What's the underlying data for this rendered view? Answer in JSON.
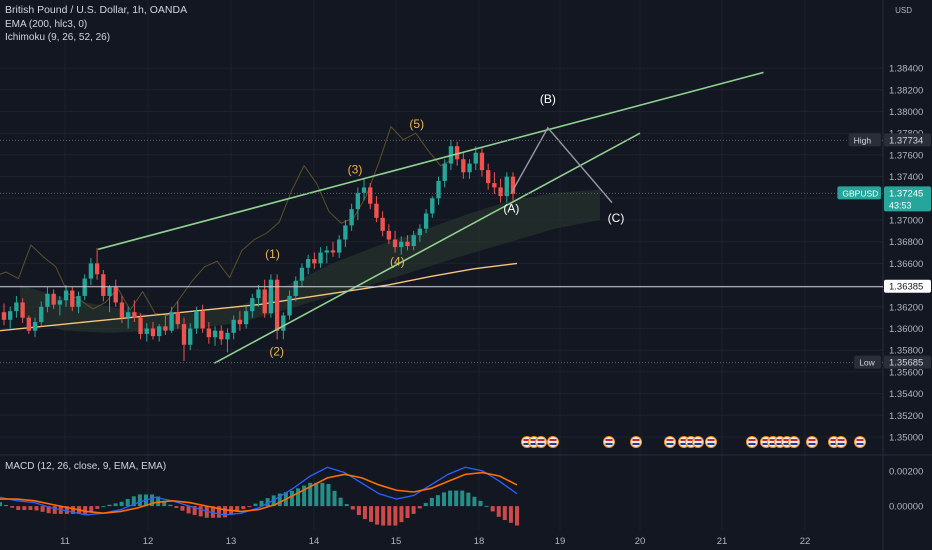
{
  "legend": {
    "title": "British Pound / U.S. Dollar, 1h, OANDA",
    "ema": "EMA (200, hlc3, 0)",
    "ichimoku": "Ichimoku (9, 26, 52, 26)",
    "macd": "MACD (12, 26, close, 9, EMA, EMA)"
  },
  "colors": {
    "background": "#131722",
    "up": "#26a69a",
    "down": "#ef5350",
    "ema": "#f7c480",
    "wedge": "#8fd18f",
    "projection": "#9598a1",
    "wave_label": "#f0b34a",
    "abc_label": "#ffffff",
    "macd_line": "#2962ff",
    "signal_line": "#ff6d00",
    "cloud": "#2a3a30"
  },
  "chart_data": [
    {
      "type": "candlestick",
      "title": "British Pound / U.S. Dollar, 1h, OANDA",
      "symbol": "GBPUSD",
      "x_ticks": [
        "11",
        "12",
        "13",
        "14",
        "15",
        "18",
        "19",
        "20",
        "21",
        "22"
      ],
      "y_ticks": [
        "1.38400",
        "1.38200",
        "1.38000",
        "1.37800",
        "1.37600",
        "1.37400",
        "1.37200",
        "1.37000",
        "1.36800",
        "1.36600",
        "1.36400",
        "1.36200",
        "1.36000",
        "1.35800",
        "1.35600",
        "1.35400",
        "1.35200",
        "1.35000"
      ],
      "y_unit": "USD",
      "ylim": [
        1.3496,
        1.3855
      ],
      "price_labels": [
        {
          "label": "High",
          "value": "1.37734"
        },
        {
          "label": "GBPUSD",
          "value": "1.37245",
          "sub": "43:53"
        },
        {
          "label": "",
          "value": "1.36385"
        },
        {
          "label": "Low",
          "value": "1.35685"
        }
      ],
      "levels": {
        "high": 1.37734,
        "current": 1.37245,
        "crosshair": 1.36385,
        "low": 1.35685
      },
      "wave_labels": [
        {
          "text": "(1)",
          "x_day": 13.5,
          "y": 1.3665
        },
        {
          "text": "(2)",
          "x_day": 13.55,
          "y": 1.3575
        },
        {
          "text": "(3)",
          "x_day": 14.5,
          "y": 1.3743
        },
        {
          "text": "(4)",
          "x_day": 15.05,
          "y": 1.3658
        },
        {
          "text": "(5)",
          "x_day": 15.75,
          "y": 1.3785
        },
        {
          "text": "(A)",
          "x_day": 18.4,
          "y": 1.3707
        },
        {
          "text": "(B)",
          "x_day": 18.85,
          "y": 1.3808
        },
        {
          "text": "(C)",
          "x_day": 19.7,
          "y": 1.3698
        }
      ],
      "trendlines": {
        "upper": [
          [
            11.4,
            1.3673
          ],
          [
            21.5,
            1.3836
          ]
        ],
        "lower": [
          [
            12.8,
            1.3568
          ],
          [
            20.0,
            1.378
          ]
        ],
        "projection": [
          [
            18.4,
            1.3725
          ],
          [
            18.85,
            1.3785
          ],
          [
            19.65,
            1.3716
          ]
        ]
      },
      "candles_ohlc": [
        [
          1.3615,
          1.3623,
          1.3603,
          1.3608
        ],
        [
          1.3608,
          1.362,
          1.36,
          1.3616
        ],
        [
          1.3616,
          1.363,
          1.361,
          1.3624
        ],
        [
          1.3624,
          1.3628,
          1.3605,
          1.361
        ],
        [
          1.361,
          1.3612,
          1.3595,
          1.3598
        ],
        [
          1.3598,
          1.361,
          1.3592,
          1.3606
        ],
        [
          1.3606,
          1.3625,
          1.3602,
          1.362
        ],
        [
          1.362,
          1.3638,
          1.3615,
          1.3632
        ],
        [
          1.3632,
          1.3636,
          1.3618,
          1.3622
        ],
        [
          1.3622,
          1.363,
          1.3612,
          1.3626
        ],
        [
          1.3626,
          1.364,
          1.362,
          1.3635
        ],
        [
          1.3635,
          1.3638,
          1.3616,
          1.362
        ],
        [
          1.362,
          1.3634,
          1.3614,
          1.363
        ],
        [
          1.363,
          1.365,
          1.3626,
          1.3646
        ],
        [
          1.3646,
          1.3665,
          1.364,
          1.366
        ],
        [
          1.366,
          1.3674,
          1.3645,
          1.365
        ],
        [
          1.365,
          1.3654,
          1.3625,
          1.363
        ],
        [
          1.363,
          1.364,
          1.3615,
          1.3638
        ],
        [
          1.3638,
          1.3645,
          1.362,
          1.3624
        ],
        [
          1.3624,
          1.363,
          1.3605,
          1.361
        ],
        [
          1.361,
          1.362,
          1.36,
          1.3615
        ],
        [
          1.3615,
          1.3626,
          1.3606,
          1.361
        ],
        [
          1.361,
          1.3614,
          1.359,
          1.3595
        ],
        [
          1.3595,
          1.3605,
          1.3588,
          1.36
        ],
        [
          1.36,
          1.3606,
          1.359,
          1.3593
        ],
        [
          1.3593,
          1.3604,
          1.3588,
          1.3602
        ],
        [
          1.3602,
          1.3612,
          1.3594,
          1.3598
        ],
        [
          1.3598,
          1.362,
          1.3596,
          1.3615
        ],
        [
          1.3615,
          1.3625,
          1.36,
          1.3604
        ],
        [
          1.3604,
          1.361,
          1.357,
          1.3585
        ],
        [
          1.3585,
          1.3605,
          1.358,
          1.36
        ],
        [
          1.36,
          1.362,
          1.3595,
          1.3616
        ],
        [
          1.3616,
          1.3622,
          1.3596,
          1.36
        ],
        [
          1.36,
          1.3606,
          1.3586,
          1.3592
        ],
        [
          1.3592,
          1.3602,
          1.3584,
          1.3598
        ],
        [
          1.3598,
          1.3603,
          1.3585,
          1.359
        ],
        [
          1.359,
          1.36,
          1.3578,
          1.3596
        ],
        [
          1.3596,
          1.3612,
          1.359,
          1.3608
        ],
        [
          1.3608,
          1.3616,
          1.3598,
          1.3604
        ],
        [
          1.3604,
          1.362,
          1.36,
          1.3616
        ],
        [
          1.3616,
          1.3632,
          1.361,
          1.3628
        ],
        [
          1.3628,
          1.364,
          1.362,
          1.3636
        ],
        [
          1.3636,
          1.3645,
          1.361,
          1.3614
        ],
        [
          1.3614,
          1.365,
          1.361,
          1.3645
        ],
        [
          1.3645,
          1.365,
          1.359,
          1.3598
        ],
        [
          1.3598,
          1.3615,
          1.359,
          1.3612
        ],
        [
          1.3612,
          1.3635,
          1.3608,
          1.363
        ],
        [
          1.363,
          1.3648,
          1.3625,
          1.3644
        ],
        [
          1.3644,
          1.366,
          1.3638,
          1.3656
        ],
        [
          1.3656,
          1.3668,
          1.365,
          1.3664
        ],
        [
          1.3664,
          1.367,
          1.3655,
          1.366
        ],
        [
          1.366,
          1.3675,
          1.3656,
          1.367
        ],
        [
          1.367,
          1.3676,
          1.366,
          1.3672
        ],
        [
          1.3672,
          1.368,
          1.3666,
          1.367
        ],
        [
          1.367,
          1.3686,
          1.3665,
          1.3682
        ],
        [
          1.3682,
          1.37,
          1.3675,
          1.3695
        ],
        [
          1.3695,
          1.3715,
          1.369,
          1.371
        ],
        [
          1.371,
          1.373,
          1.37,
          1.3725
        ],
        [
          1.3725,
          1.3738,
          1.3718,
          1.373
        ],
        [
          1.373,
          1.3734,
          1.371,
          1.3715
        ],
        [
          1.3715,
          1.3722,
          1.3698,
          1.3702
        ],
        [
          1.3702,
          1.3708,
          1.3685,
          1.369
        ],
        [
          1.369,
          1.3696,
          1.3678,
          1.3682
        ],
        [
          1.3682,
          1.369,
          1.367,
          1.3675
        ],
        [
          1.3675,
          1.3685,
          1.3668,
          1.368
        ],
        [
          1.368,
          1.3686,
          1.3672,
          1.3676
        ],
        [
          1.3676,
          1.369,
          1.3672,
          1.3686
        ],
        [
          1.3686,
          1.3696,
          1.368,
          1.3692
        ],
        [
          1.3692,
          1.371,
          1.3688,
          1.3706
        ],
        [
          1.3706,
          1.3722,
          1.3702,
          1.372
        ],
        [
          1.372,
          1.374,
          1.3714,
          1.3736
        ],
        [
          1.3736,
          1.3756,
          1.373,
          1.3752
        ],
        [
          1.3752,
          1.3774,
          1.3746,
          1.3768
        ],
        [
          1.3768,
          1.3772,
          1.375,
          1.3756
        ],
        [
          1.3756,
          1.3762,
          1.3738,
          1.3744
        ],
        [
          1.3744,
          1.3756,
          1.3738,
          1.3752
        ],
        [
          1.3752,
          1.3768,
          1.3746,
          1.3762
        ],
        [
          1.3762,
          1.3766,
          1.374,
          1.3746
        ],
        [
          1.3746,
          1.3752,
          1.3728,
          1.3734
        ],
        [
          1.3734,
          1.3744,
          1.3724,
          1.373
        ],
        [
          1.373,
          1.3738,
          1.3716,
          1.3722
        ],
        [
          1.3722,
          1.3744,
          1.3716,
          1.374
        ],
        [
          1.374,
          1.3744,
          1.3718,
          1.3724
        ]
      ],
      "ema_values": [
        1.3598,
        1.3602,
        1.3606,
        1.361,
        1.3614,
        1.3618,
        1.3622,
        1.3628,
        1.3634,
        1.364,
        1.3648,
        1.3655,
        1.366
      ],
      "cloud_upper": [
        1.364,
        1.3628,
        1.362,
        1.3612,
        1.3615,
        1.3622,
        1.364,
        1.366,
        1.3676,
        1.369,
        1.3705,
        1.3718,
        1.3725,
        1.3728
      ],
      "cloud_lower": [
        1.361,
        1.3598,
        1.3596,
        1.3598,
        1.36,
        1.3606,
        1.3618,
        1.363,
        1.3642,
        1.3655,
        1.3668,
        1.368,
        1.3692,
        1.37
      ],
      "event_markers_x": [
        527,
        534,
        541,
        553,
        609,
        636,
        670,
        684,
        691,
        698,
        711,
        752,
        766,
        773,
        780,
        787,
        794,
        812,
        834,
        841,
        860
      ]
    },
    {
      "type": "macd",
      "title": "MACD (12, 26, close, 9, EMA, EMA)",
      "y_ticks": [
        "0.00200",
        "0.00000"
      ],
      "ylim": [
        -0.0009,
        0.0025
      ],
      "macd_line": [
        0.0005,
        0.0003,
        0.0002,
        -0.0001,
        -0.0003,
        -0.0005,
        -0.0004,
        -0.0002,
        0.0002,
        0.0005,
        0.0003,
        0.0,
        -0.0003,
        -0.0005,
        -0.0004,
        -0.0001,
        0.0004,
        0.001,
        0.0017,
        0.0022,
        0.0019,
        0.0013,
        0.0007,
        0.0004,
        0.0006,
        0.0012,
        0.0018,
        0.0022,
        0.002,
        0.0014,
        0.0007
      ],
      "signal_line": [
        0.0004,
        0.0004,
        0.0003,
        0.0001,
        -0.0001,
        -0.0003,
        -0.0004,
        -0.0003,
        -0.0001,
        0.0002,
        0.0003,
        0.0002,
        0.0,
        -0.0002,
        -0.0003,
        -0.0002,
        0.0001,
        0.0006,
        0.0011,
        0.0016,
        0.0018,
        0.0016,
        0.0012,
        0.0009,
        0.0008,
        0.001,
        0.0014,
        0.0018,
        0.0019,
        0.0017,
        0.0012
      ]
    }
  ],
  "time_axis": [
    "11",
    "12",
    "13",
    "14",
    "15",
    "18",
    "19",
    "20",
    "21",
    "22"
  ]
}
